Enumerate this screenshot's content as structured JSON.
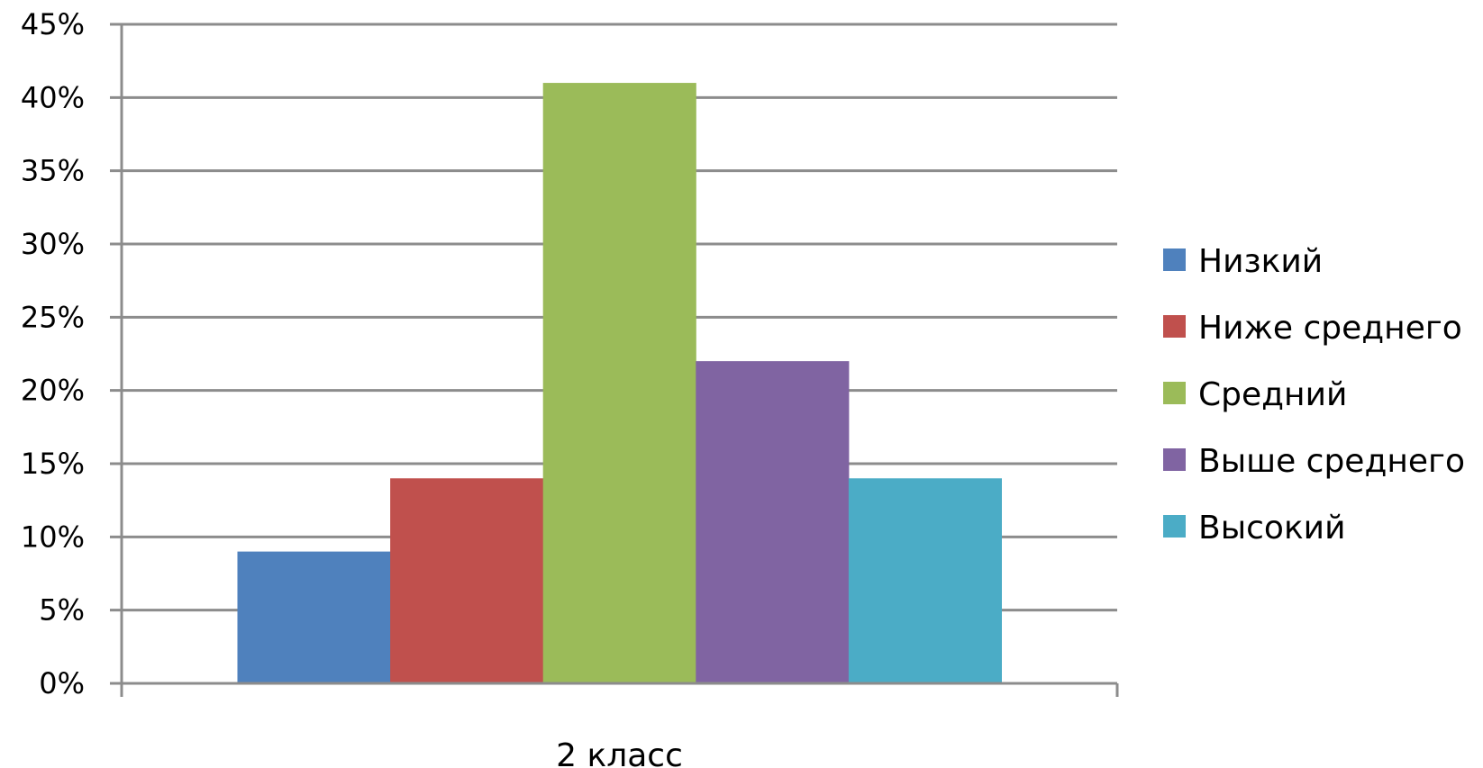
{
  "chart_data": {
    "type": "bar",
    "categories": [
      "2 класс"
    ],
    "series": [
      {
        "name": "Низкий",
        "values": [
          9
        ],
        "color": "#4f81bd"
      },
      {
        "name": "Ниже среднего",
        "values": [
          14
        ],
        "color": "#c0504d"
      },
      {
        "name": "Средний",
        "values": [
          41
        ],
        "color": "#9bbb59"
      },
      {
        "name": "Выше среднего",
        "values": [
          22
        ],
        "color": "#8064a2"
      },
      {
        "name": "Высокий",
        "values": [
          14
        ],
        "color": "#4bacc6"
      }
    ],
    "ylim": [
      0,
      45
    ],
    "y_ticks": [
      "0%",
      "5%",
      "10%",
      "15%",
      "20%",
      "25%",
      "30%",
      "35%",
      "40%",
      "45%"
    ],
    "y_tick_values": [
      0,
      5,
      10,
      15,
      20,
      25,
      30,
      35,
      40,
      45
    ],
    "grid": true,
    "legend_position": "right"
  }
}
